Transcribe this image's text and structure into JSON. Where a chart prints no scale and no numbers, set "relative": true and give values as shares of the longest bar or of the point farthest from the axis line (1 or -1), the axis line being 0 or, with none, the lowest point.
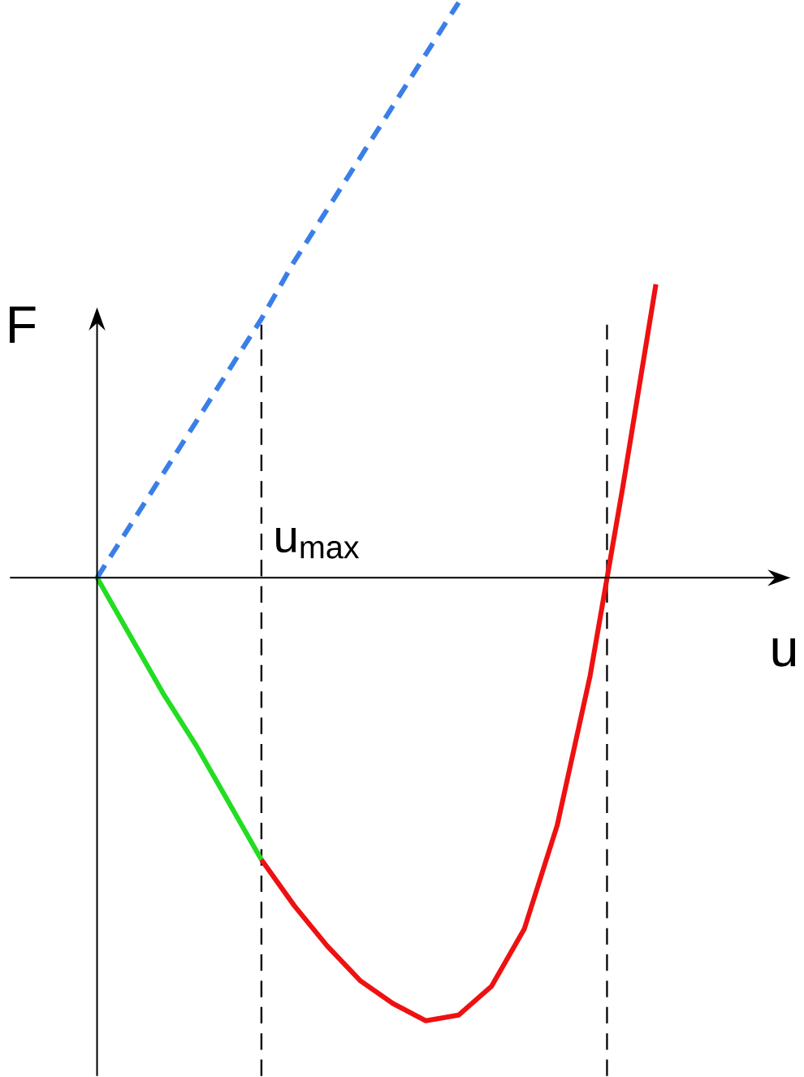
{
  "chart_data": {
    "type": "line",
    "relative": true,
    "xlabel": "u",
    "ylabel": "F",
    "categories": [
      null,
      null,
      null,
      null,
      null,
      null,
      null,
      null,
      null,
      null,
      null,
      null,
      null,
      null,
      null,
      null,
      null,
      null
    ],
    "series": [
      {
        "color": "#3a7fe8",
        "line_style": "dashed",
        "values": [
          0,
          0.09,
          0.18,
          0.27,
          0.36,
          0.45,
          0.55,
          0.64,
          0.73,
          0.82,
          0.91,
          1.0,
          null,
          null,
          null,
          null,
          null,
          null
        ]
      },
      {
        "color": "#22dd22",
        "line_style": "solid",
        "values": [
          0,
          -0.1,
          -0.2,
          -0.29,
          -0.39,
          -0.49,
          null,
          null,
          null,
          null,
          null,
          null,
          null,
          null,
          null,
          null,
          null,
          null
        ]
      },
      {
        "color": "#ee1111",
        "line_style": "solid",
        "values": [
          null,
          null,
          null,
          null,
          null,
          -0.49,
          -0.57,
          -0.64,
          -0.7,
          -0.74,
          -0.77,
          -0.76,
          -0.71,
          -0.61,
          -0.43,
          -0.17,
          0.16,
          0.51
        ]
      }
    ],
    "annotations": [
      "u$_{max}$"
    ]
  }
}
